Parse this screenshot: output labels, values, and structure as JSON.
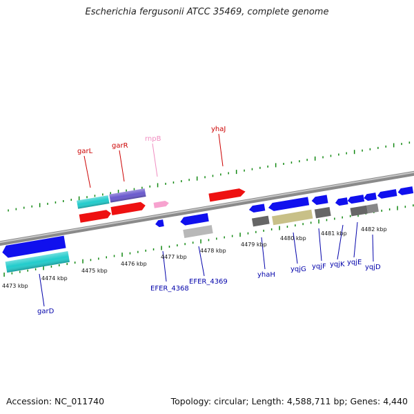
{
  "title": "Escherichia fergusonii ATCC 35469, complete genome",
  "footer": {
    "accession": "Accession: NC_011740",
    "topology": "Topology: circular; Length: 4,588,711 bp; Genes: 4,440"
  },
  "colors": {
    "backbone": "#888888",
    "tick": "#118811",
    "label_red": "#cc0000",
    "label_pink": "#f08cc0",
    "label_blue": "#0000aa",
    "label_black": "#111111"
  },
  "scale_labels": [
    {
      "id": "4473",
      "text": "4473 kbp"
    },
    {
      "id": "4474",
      "text": "4474 kbp"
    },
    {
      "id": "4475",
      "text": "4475 kbp"
    },
    {
      "id": "4476",
      "text": "4476 kbp"
    },
    {
      "id": "4477",
      "text": "4477 kbp"
    },
    {
      "id": "4478",
      "text": "4478 kbp"
    },
    {
      "id": "4479",
      "text": "4479 kbp"
    },
    {
      "id": "4480",
      "text": "4480 kbp"
    },
    {
      "id": "4481",
      "text": "4481 kbp"
    },
    {
      "id": "4482",
      "text": "4482 kbp"
    }
  ],
  "gene_labels": [
    {
      "id": "garL",
      "text": "garL",
      "color": "red"
    },
    {
      "id": "garR",
      "text": "garR",
      "color": "red"
    },
    {
      "id": "rnpB",
      "text": "rnpB",
      "color": "pink"
    },
    {
      "id": "yhaJ",
      "text": "yhaJ",
      "color": "red"
    },
    {
      "id": "garD",
      "text": "garD",
      "color": "blue"
    },
    {
      "id": "EFER_4368",
      "text": "EFER_4368",
      "color": "blue"
    },
    {
      "id": "EFER_4369",
      "text": "EFER_4369",
      "color": "blue"
    },
    {
      "id": "yhaH",
      "text": "yhaH",
      "color": "blue"
    },
    {
      "id": "yqjG",
      "text": "yqjG",
      "color": "blue"
    },
    {
      "id": "yqjF",
      "text": "yqjF",
      "color": "blue"
    },
    {
      "id": "yqjK",
      "text": "yqjK",
      "color": "blue"
    },
    {
      "id": "yqjE",
      "text": "yqjE",
      "color": "blue"
    },
    {
      "id": "yqjD",
      "text": "yqjD",
      "color": "blue"
    }
  ]
}
